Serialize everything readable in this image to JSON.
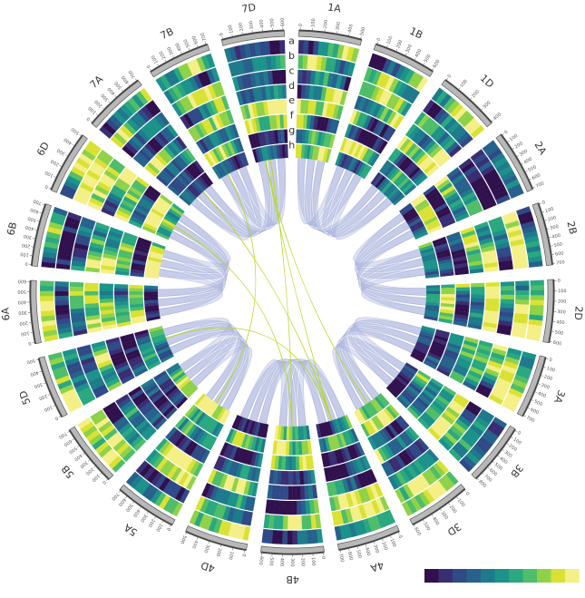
{
  "chart_data": {
    "type": "heatmap",
    "layout": "circular",
    "chromosomes": [
      {
        "name": "1A",
        "ticks": [
          "0",
          "100",
          "200",
          "300",
          "400",
          "500"
        ]
      },
      {
        "name": "1B",
        "ticks": [
          "0",
          "100",
          "200",
          "300",
          "400",
          "500",
          "600"
        ]
      },
      {
        "name": "1D",
        "ticks": [
          "0",
          "100",
          "200",
          "300",
          "400"
        ]
      },
      {
        "name": "2A",
        "ticks": [
          "0",
          "100",
          "200",
          "300",
          "400",
          "500",
          "600",
          "700"
        ]
      },
      {
        "name": "2B",
        "ticks": [
          "0",
          "100",
          "200",
          "300",
          "400",
          "500",
          "600",
          "700"
        ]
      },
      {
        "name": "2D",
        "ticks": [
          "0",
          "100",
          "200",
          "300",
          "400",
          "500",
          "600"
        ]
      },
      {
        "name": "3A",
        "ticks": [
          "0",
          "100",
          "200",
          "300",
          "400",
          "500",
          "600",
          "700"
        ]
      },
      {
        "name": "3B",
        "ticks": [
          "0",
          "100",
          "200",
          "300",
          "400",
          "500",
          "600",
          "700",
          "800"
        ]
      },
      {
        "name": "3D",
        "ticks": [
          "0",
          "100",
          "200",
          "300",
          "400",
          "500",
          "600"
        ]
      },
      {
        "name": "4A",
        "ticks": [
          "0",
          "100",
          "200",
          "300",
          "400",
          "500",
          "600",
          "700"
        ]
      },
      {
        "name": "4B",
        "ticks": [
          "0",
          "100",
          "200",
          "300",
          "400",
          "500",
          "600"
        ]
      },
      {
        "name": "4D",
        "ticks": [
          "0",
          "100",
          "200",
          "300",
          "400",
          "500"
        ]
      },
      {
        "name": "5A",
        "ticks": [
          "0",
          "100",
          "200",
          "300",
          "400",
          "500",
          "600",
          "700"
        ]
      },
      {
        "name": "5B",
        "ticks": [
          "0",
          "100",
          "200",
          "300",
          "400",
          "500",
          "600",
          "700"
        ]
      },
      {
        "name": "5D",
        "ticks": [
          "0",
          "100",
          "200",
          "300",
          "400",
          "500"
        ]
      },
      {
        "name": "6A",
        "ticks": [
          "0",
          "100",
          "200",
          "300",
          "400",
          "500",
          "600"
        ]
      },
      {
        "name": "6B",
        "ticks": [
          "0",
          "100",
          "200",
          "300",
          "400",
          "500",
          "600",
          "700"
        ]
      },
      {
        "name": "6D",
        "ticks": [
          "0",
          "100",
          "200",
          "300",
          "400",
          "500"
        ]
      },
      {
        "name": "7A",
        "ticks": [
          "0",
          "100",
          "200",
          "300",
          "400",
          "500",
          "600",
          "700"
        ]
      },
      {
        "name": "7B",
        "ticks": [
          "0",
          "100",
          "200",
          "300",
          "400",
          "500",
          "600",
          "700"
        ]
      },
      {
        "name": "7D",
        "ticks": [
          "0",
          "100",
          "200",
          "300",
          "400",
          "500",
          "600"
        ]
      }
    ],
    "tracks": [
      "a",
      "b",
      "c",
      "d",
      "e",
      "f",
      "g",
      "h"
    ],
    "colorscale": [
      "#30114e",
      "#3a2e73",
      "#2f4a87",
      "#26628c",
      "#1f7a8c",
      "#1c928b",
      "#2aa880",
      "#4fbd6a",
      "#8fd24a",
      "#d9e234",
      "#f4ef86"
    ],
    "link_colors": {
      "homeologous": "#9fa9d8",
      "other": "#b7d92a"
    }
  }
}
